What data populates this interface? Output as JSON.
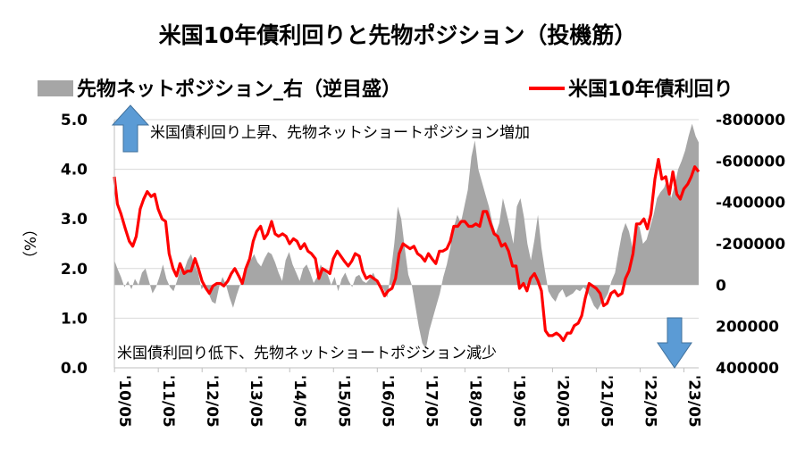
{
  "chart_data": {
    "type": "line+area",
    "title": "米国10年債利回りと先物ポジション（投機筋）",
    "legend": {
      "area_label": "先物ネットポジション_右（逆目盛）",
      "line_label": "米国10年債利回り",
      "placement": "top"
    },
    "ylabel_left": "（%）",
    "left_axis": {
      "min": 0.0,
      "max": 5.0,
      "ticks": [
        "0.0",
        "1.0",
        "2.0",
        "3.0",
        "4.0",
        "5.0"
      ]
    },
    "right_axis": {
      "inverted": true,
      "min": -800000,
      "max": 400000,
      "ticks": [
        "-800000",
        "-600000",
        "-400000",
        "-200000",
        "0",
        "200000",
        "400000"
      ]
    },
    "x_ticks": [
      "'10/05",
      "'11/05",
      "'12/05",
      "'13/05",
      "'14/05",
      "'15/05",
      "'16/05",
      "'17/05",
      "'18/05",
      "'19/05",
      "'20/05",
      "'21/05",
      "'22/05",
      "'23/05"
    ],
    "x_range": [
      2010.33,
      2023.67
    ],
    "grid": true,
    "annotations": {
      "upper": "米国債利回り上昇、先物ネットショートポジション増加",
      "lower": "米国債利回り低下、先物ネットショートポジション減少"
    },
    "colors": {
      "line": "#ff0000",
      "area": "#a6a6a6",
      "arrow": "#5b9bd5",
      "grid": "#d9d9d9"
    },
    "yield_series": {
      "name": "米国10年債利回り",
      "points": [
        [
          2010.33,
          3.85
        ],
        [
          2010.4,
          3.3
        ],
        [
          2010.48,
          3.1
        ],
        [
          2010.58,
          2.8
        ],
        [
          2010.67,
          2.55
        ],
        [
          2010.75,
          2.45
        ],
        [
          2010.83,
          2.65
        ],
        [
          2010.92,
          3.2
        ],
        [
          2011.0,
          3.4
        ],
        [
          2011.08,
          3.55
        ],
        [
          2011.17,
          3.45
        ],
        [
          2011.25,
          3.5
        ],
        [
          2011.33,
          3.2
        ],
        [
          2011.42,
          3.0
        ],
        [
          2011.5,
          2.95
        ],
        [
          2011.58,
          2.3
        ],
        [
          2011.67,
          2.0
        ],
        [
          2011.75,
          1.85
        ],
        [
          2011.83,
          2.1
        ],
        [
          2011.92,
          1.9
        ],
        [
          2012.0,
          1.95
        ],
        [
          2012.08,
          1.95
        ],
        [
          2012.17,
          2.2
        ],
        [
          2012.25,
          2.0
        ],
        [
          2012.33,
          1.75
        ],
        [
          2012.42,
          1.6
        ],
        [
          2012.5,
          1.5
        ],
        [
          2012.58,
          1.65
        ],
        [
          2012.67,
          1.7
        ],
        [
          2012.75,
          1.7
        ],
        [
          2012.83,
          1.65
        ],
        [
          2012.92,
          1.75
        ],
        [
          2013.0,
          1.9
        ],
        [
          2013.08,
          2.0
        ],
        [
          2013.17,
          1.85
        ],
        [
          2013.25,
          1.7
        ],
        [
          2013.33,
          2.0
        ],
        [
          2013.42,
          2.2
        ],
        [
          2013.5,
          2.55
        ],
        [
          2013.58,
          2.75
        ],
        [
          2013.67,
          2.85
        ],
        [
          2013.75,
          2.6
        ],
        [
          2013.83,
          2.7
        ],
        [
          2013.92,
          2.95
        ],
        [
          2014.0,
          2.7
        ],
        [
          2014.08,
          2.65
        ],
        [
          2014.17,
          2.7
        ],
        [
          2014.25,
          2.65
        ],
        [
          2014.33,
          2.5
        ],
        [
          2014.42,
          2.6
        ],
        [
          2014.5,
          2.55
        ],
        [
          2014.58,
          2.4
        ],
        [
          2014.67,
          2.5
        ],
        [
          2014.75,
          2.35
        ],
        [
          2014.83,
          2.3
        ],
        [
          2014.92,
          2.2
        ],
        [
          2015.0,
          1.8
        ],
        [
          2015.08,
          2.0
        ],
        [
          2015.17,
          1.95
        ],
        [
          2015.25,
          1.9
        ],
        [
          2015.33,
          2.2
        ],
        [
          2015.42,
          2.35
        ],
        [
          2015.5,
          2.25
        ],
        [
          2015.58,
          2.15
        ],
        [
          2015.67,
          2.05
        ],
        [
          2015.75,
          2.15
        ],
        [
          2015.83,
          2.3
        ],
        [
          2015.92,
          2.25
        ],
        [
          2016.0,
          1.95
        ],
        [
          2016.08,
          1.8
        ],
        [
          2016.17,
          1.85
        ],
        [
          2016.25,
          1.8
        ],
        [
          2016.33,
          1.75
        ],
        [
          2016.42,
          1.6
        ],
        [
          2016.5,
          1.45
        ],
        [
          2016.58,
          1.55
        ],
        [
          2016.67,
          1.6
        ],
        [
          2016.75,
          1.8
        ],
        [
          2016.83,
          2.3
        ],
        [
          2016.92,
          2.5
        ],
        [
          2017.0,
          2.45
        ],
        [
          2017.08,
          2.4
        ],
        [
          2017.17,
          2.45
        ],
        [
          2017.25,
          2.3
        ],
        [
          2017.33,
          2.25
        ],
        [
          2017.42,
          2.15
        ],
        [
          2017.5,
          2.3
        ],
        [
          2017.58,
          2.2
        ],
        [
          2017.67,
          2.1
        ],
        [
          2017.75,
          2.35
        ],
        [
          2017.83,
          2.35
        ],
        [
          2017.92,
          2.4
        ],
        [
          2018.0,
          2.55
        ],
        [
          2018.08,
          2.85
        ],
        [
          2018.17,
          2.85
        ],
        [
          2018.25,
          2.95
        ],
        [
          2018.33,
          2.95
        ],
        [
          2018.42,
          2.85
        ],
        [
          2018.5,
          2.85
        ],
        [
          2018.58,
          2.9
        ],
        [
          2018.67,
          2.85
        ],
        [
          2018.75,
          3.15
        ],
        [
          2018.83,
          3.15
        ],
        [
          2018.92,
          2.9
        ],
        [
          2019.0,
          2.7
        ],
        [
          2019.08,
          2.65
        ],
        [
          2019.17,
          2.45
        ],
        [
          2019.25,
          2.5
        ],
        [
          2019.33,
          2.35
        ],
        [
          2019.42,
          2.05
        ],
        [
          2019.5,
          2.05
        ],
        [
          2019.58,
          1.6
        ],
        [
          2019.67,
          1.7
        ],
        [
          2019.75,
          1.55
        ],
        [
          2019.83,
          1.8
        ],
        [
          2019.92,
          1.9
        ],
        [
          2020.0,
          1.75
        ],
        [
          2020.08,
          1.55
        ],
        [
          2020.17,
          0.75
        ],
        [
          2020.25,
          0.65
        ],
        [
          2020.33,
          0.65
        ],
        [
          2020.42,
          0.7
        ],
        [
          2020.5,
          0.65
        ],
        [
          2020.58,
          0.55
        ],
        [
          2020.67,
          0.7
        ],
        [
          2020.75,
          0.7
        ],
        [
          2020.83,
          0.85
        ],
        [
          2020.92,
          0.9
        ],
        [
          2021.0,
          1.05
        ],
        [
          2021.08,
          1.4
        ],
        [
          2021.17,
          1.7
        ],
        [
          2021.25,
          1.65
        ],
        [
          2021.33,
          1.6
        ],
        [
          2021.42,
          1.5
        ],
        [
          2021.5,
          1.25
        ],
        [
          2021.58,
          1.3
        ],
        [
          2021.67,
          1.5
        ],
        [
          2021.75,
          1.55
        ],
        [
          2021.83,
          1.45
        ],
        [
          2021.92,
          1.5
        ],
        [
          2022.0,
          1.8
        ],
        [
          2022.08,
          1.95
        ],
        [
          2022.17,
          2.3
        ],
        [
          2022.25,
          2.9
        ],
        [
          2022.33,
          2.9
        ],
        [
          2022.42,
          3.0
        ],
        [
          2022.5,
          2.8
        ],
        [
          2022.58,
          3.1
        ],
        [
          2022.67,
          3.8
        ],
        [
          2022.75,
          4.2
        ],
        [
          2022.83,
          3.8
        ],
        [
          2022.92,
          3.85
        ],
        [
          2023.0,
          3.5
        ],
        [
          2023.08,
          3.95
        ],
        [
          2023.17,
          3.5
        ],
        [
          2023.25,
          3.4
        ],
        [
          2023.33,
          3.6
        ],
        [
          2023.42,
          3.7
        ],
        [
          2023.5,
          3.85
        ],
        [
          2023.58,
          4.05
        ],
        [
          2023.67,
          3.95
        ]
      ]
    },
    "position_series": {
      "name": "先物ネットポジション_右（逆目盛）",
      "points": [
        [
          2010.33,
          -120000
        ],
        [
          2010.4,
          -80000
        ],
        [
          2010.48,
          -40000
        ],
        [
          2010.56,
          10000
        ],
        [
          2010.64,
          -20000
        ],
        [
          2010.72,
          20000
        ],
        [
          2010.8,
          -30000
        ],
        [
          2010.88,
          0
        ],
        [
          2010.96,
          -60000
        ],
        [
          2011.04,
          -80000
        ],
        [
          2011.12,
          -20000
        ],
        [
          2011.2,
          40000
        ],
        [
          2011.28,
          10000
        ],
        [
          2011.36,
          -40000
        ],
        [
          2011.44,
          -100000
        ],
        [
          2011.52,
          -30000
        ],
        [
          2011.6,
          10000
        ],
        [
          2011.68,
          30000
        ],
        [
          2011.76,
          -20000
        ],
        [
          2011.84,
          -80000
        ],
        [
          2011.92,
          -70000
        ],
        [
          2012.0,
          -120000
        ],
        [
          2012.08,
          -150000
        ],
        [
          2012.16,
          -100000
        ],
        [
          2012.24,
          -60000
        ],
        [
          2012.32,
          20000
        ],
        [
          2012.4,
          0
        ],
        [
          2012.48,
          40000
        ],
        [
          2012.56,
          80000
        ],
        [
          2012.64,
          90000
        ],
        [
          2012.72,
          10000
        ],
        [
          2012.8,
          -40000
        ],
        [
          2012.88,
          0
        ],
        [
          2012.96,
          60000
        ],
        [
          2013.04,
          110000
        ],
        [
          2013.12,
          50000
        ],
        [
          2013.2,
          0
        ],
        [
          2013.28,
          -30000
        ],
        [
          2013.36,
          -80000
        ],
        [
          2013.44,
          -120000
        ],
        [
          2013.52,
          -150000
        ],
        [
          2013.6,
          -110000
        ],
        [
          2013.68,
          -90000
        ],
        [
          2013.76,
          -130000
        ],
        [
          2013.84,
          -160000
        ],
        [
          2013.92,
          -150000
        ],
        [
          2014.0,
          -110000
        ],
        [
          2014.08,
          -60000
        ],
        [
          2014.16,
          -20000
        ],
        [
          2014.24,
          -120000
        ],
        [
          2014.32,
          -160000
        ],
        [
          2014.4,
          -100000
        ],
        [
          2014.48,
          -60000
        ],
        [
          2014.56,
          -20000
        ],
        [
          2014.64,
          -80000
        ],
        [
          2014.72,
          -100000
        ],
        [
          2014.8,
          -60000
        ],
        [
          2014.88,
          -10000
        ],
        [
          2014.96,
          -40000
        ],
        [
          2015.04,
          -100000
        ],
        [
          2015.12,
          -70000
        ],
        [
          2015.2,
          -50000
        ],
        [
          2015.28,
          0
        ],
        [
          2015.36,
          -40000
        ],
        [
          2015.44,
          30000
        ],
        [
          2015.52,
          -30000
        ],
        [
          2015.6,
          -60000
        ],
        [
          2015.68,
          -20000
        ],
        [
          2015.76,
          10000
        ],
        [
          2015.84,
          -40000
        ],
        [
          2015.92,
          -50000
        ],
        [
          2016.0,
          -20000
        ],
        [
          2016.08,
          -10000
        ],
        [
          2016.16,
          -30000
        ],
        [
          2016.24,
          -60000
        ],
        [
          2016.32,
          -20000
        ],
        [
          2016.4,
          0
        ],
        [
          2016.48,
          20000
        ],
        [
          2016.56,
          60000
        ],
        [
          2016.64,
          -60000
        ],
        [
          2016.72,
          -200000
        ],
        [
          2016.8,
          -380000
        ],
        [
          2016.88,
          -320000
        ],
        [
          2016.96,
          -180000
        ],
        [
          2017.04,
          -50000
        ],
        [
          2017.12,
          0
        ],
        [
          2017.2,
          100000
        ],
        [
          2017.28,
          200000
        ],
        [
          2017.36,
          280000
        ],
        [
          2017.44,
          310000
        ],
        [
          2017.52,
          220000
        ],
        [
          2017.6,
          160000
        ],
        [
          2017.68,
          100000
        ],
        [
          2017.76,
          40000
        ],
        [
          2017.84,
          -40000
        ],
        [
          2017.92,
          -100000
        ],
        [
          2018.0,
          -180000
        ],
        [
          2018.08,
          -280000
        ],
        [
          2018.16,
          -340000
        ],
        [
          2018.24,
          -300000
        ],
        [
          2018.32,
          -380000
        ],
        [
          2018.4,
          -460000
        ],
        [
          2018.48,
          -620000
        ],
        [
          2018.56,
          -700000
        ],
        [
          2018.64,
          -560000
        ],
        [
          2018.72,
          -500000
        ],
        [
          2018.8,
          -440000
        ],
        [
          2018.88,
          -380000
        ],
        [
          2018.96,
          -300000
        ],
        [
          2019.04,
          -250000
        ],
        [
          2019.12,
          -300000
        ],
        [
          2019.2,
          -420000
        ],
        [
          2019.28,
          -350000
        ],
        [
          2019.36,
          -280000
        ],
        [
          2019.44,
          -200000
        ],
        [
          2019.52,
          -380000
        ],
        [
          2019.6,
          -420000
        ],
        [
          2019.68,
          -330000
        ],
        [
          2019.76,
          -200000
        ],
        [
          2019.84,
          -120000
        ],
        [
          2019.92,
          -220000
        ],
        [
          2020.0,
          -340000
        ],
        [
          2020.08,
          -180000
        ],
        [
          2020.16,
          -70000
        ],
        [
          2020.24,
          30000
        ],
        [
          2020.32,
          60000
        ],
        [
          2020.4,
          80000
        ],
        [
          2020.48,
          40000
        ],
        [
          2020.56,
          20000
        ],
        [
          2020.64,
          60000
        ],
        [
          2020.72,
          50000
        ],
        [
          2020.8,
          40000
        ],
        [
          2020.88,
          20000
        ],
        [
          2020.96,
          30000
        ],
        [
          2021.04,
          10000
        ],
        [
          2021.12,
          30000
        ],
        [
          2021.2,
          60000
        ],
        [
          2021.28,
          100000
        ],
        [
          2021.36,
          120000
        ],
        [
          2021.44,
          90000
        ],
        [
          2021.52,
          70000
        ],
        [
          2021.6,
          40000
        ],
        [
          2021.68,
          -20000
        ],
        [
          2021.76,
          -60000
        ],
        [
          2021.84,
          -160000
        ],
        [
          2021.92,
          -250000
        ],
        [
          2022.0,
          -300000
        ],
        [
          2022.08,
          -260000
        ],
        [
          2022.16,
          -180000
        ],
        [
          2022.24,
          -300000
        ],
        [
          2022.32,
          -280000
        ],
        [
          2022.4,
          -200000
        ],
        [
          2022.48,
          -220000
        ],
        [
          2022.56,
          -280000
        ],
        [
          2022.64,
          -340000
        ],
        [
          2022.72,
          -420000
        ],
        [
          2022.8,
          -450000
        ],
        [
          2022.88,
          -470000
        ],
        [
          2022.96,
          -520000
        ],
        [
          2023.04,
          -420000
        ],
        [
          2023.12,
          -480000
        ],
        [
          2023.2,
          -560000
        ],
        [
          2023.28,
          -600000
        ],
        [
          2023.36,
          -650000
        ],
        [
          2023.44,
          -720000
        ],
        [
          2023.52,
          -780000
        ],
        [
          2023.6,
          -720000
        ],
        [
          2023.67,
          -690000
        ]
      ]
    }
  }
}
